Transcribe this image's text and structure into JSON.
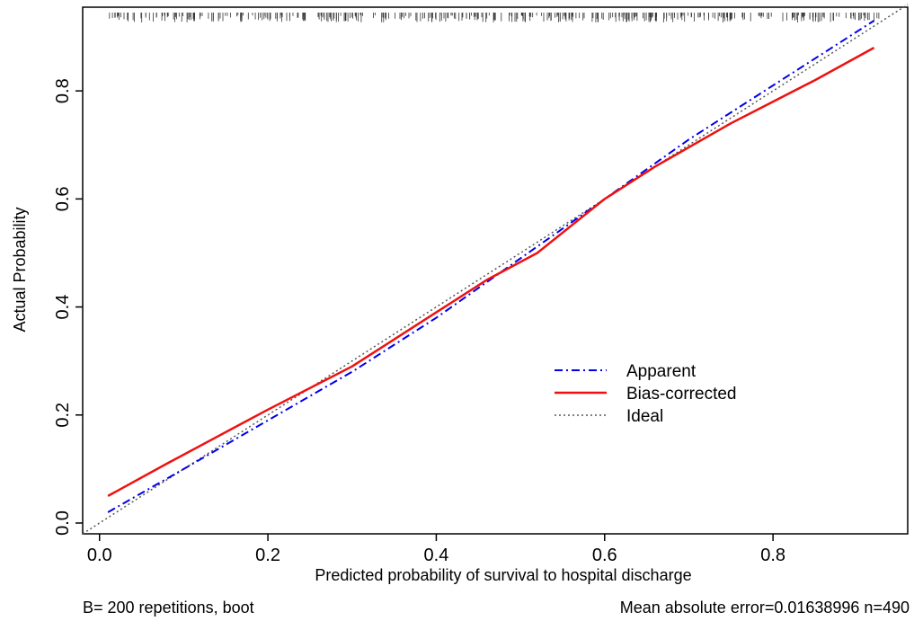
{
  "chart_data": {
    "type": "line",
    "title": "",
    "xlabel": "Predicted probability of survival to hospital discharge",
    "ylabel": "Actual Probability",
    "xlim": [
      -0.02,
      0.96
    ],
    "ylim": [
      -0.02,
      0.955
    ],
    "x_ticks": [
      "0.0",
      "0.2",
      "0.4",
      "0.6",
      "0.8"
    ],
    "y_ticks": [
      "0.0",
      "0.2",
      "0.4",
      "0.6",
      "0.8"
    ],
    "grid": false,
    "legend_position": "lower-right",
    "series": [
      {
        "name": "Apparent",
        "style": "dashdot",
        "color": "#0000ee",
        "x": [
          0.01,
          0.1,
          0.2,
          0.3,
          0.4,
          0.5,
          0.6,
          0.7,
          0.8,
          0.92
        ],
        "y": [
          0.02,
          0.1,
          0.19,
          0.28,
          0.38,
          0.49,
          0.6,
          0.71,
          0.81,
          0.93
        ]
      },
      {
        "name": "Bias-corrected",
        "style": "solid",
        "color": "#ee1111",
        "x": [
          0.01,
          0.08,
          0.14,
          0.2,
          0.3,
          0.4,
          0.46,
          0.52,
          0.6,
          0.66,
          0.75,
          0.85,
          0.92
        ],
        "y": [
          0.05,
          0.11,
          0.16,
          0.21,
          0.29,
          0.39,
          0.45,
          0.5,
          0.6,
          0.66,
          0.74,
          0.82,
          0.88
        ]
      },
      {
        "name": "Ideal",
        "style": "dotted",
        "color": "#555555",
        "x": [
          -0.02,
          0.96
        ],
        "y": [
          -0.02,
          0.96
        ]
      }
    ],
    "colors": {
      "apparent": "#0000ee",
      "bias_corrected": "#ee1111",
      "ideal": "#555555",
      "rug": "#333333"
    },
    "rug": {
      "description": "distribution of predicted values",
      "x_min": 0.01,
      "x_max": 0.93
    }
  },
  "footer": {
    "left": "B= 200 repetitions, boot",
    "right": "Mean absolute error=0.01638996 n=490"
  }
}
